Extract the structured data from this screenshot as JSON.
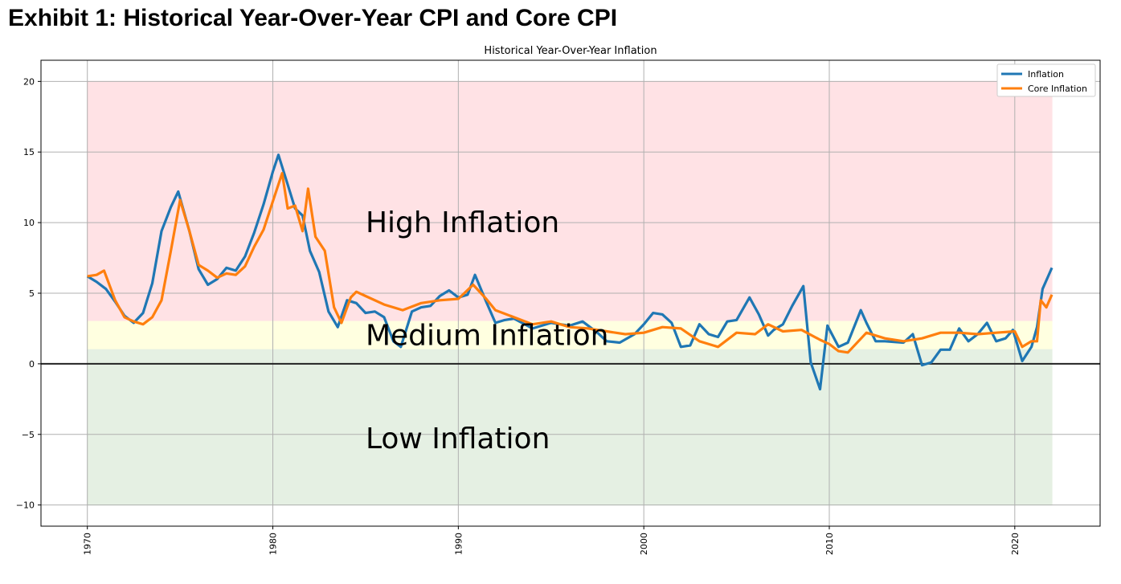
{
  "exhibit_title": "Exhibit 1: Historical Year-Over-Year CPI and Core CPI",
  "chart_data": {
    "type": "line",
    "title": "Historical Year-Over-Year Inflation",
    "xlabel": "",
    "ylabel": "",
    "xlim": [
      1967.5,
      2024.6
    ],
    "ylim": [
      -11.5,
      21.5
    ],
    "x_ticks": [
      1970,
      1980,
      1990,
      2000,
      2010,
      2020
    ],
    "y_ticks": [
      -10,
      -5,
      0,
      5,
      10,
      15,
      20
    ],
    "grid": true,
    "legend_position": "top-right",
    "zones": [
      {
        "label": "High Inflation",
        "from": 3,
        "to": 20,
        "color": "#ffe2e5",
        "label_x": 1985,
        "label_y": 10
      },
      {
        "label": "Medium Inflation",
        "from": 1,
        "to": 3,
        "color": "#ffffe0",
        "label_x": 1985,
        "label_y": 2
      },
      {
        "label": "Low Inflation",
        "from": -10,
        "to": 1,
        "color": "#e5f0e3",
        "label_x": 1985,
        "label_y": -5.3
      }
    ],
    "zone_x_range": [
      1970,
      2022
    ],
    "zero_line": 0,
    "series": [
      {
        "name": "Inflation",
        "color": "#1f77b4",
        "x": [
          1970.0,
          1970.5,
          1971.0,
          1971.5,
          1972.0,
          1972.5,
          1973.0,
          1973.5,
          1974.0,
          1974.5,
          1974.9,
          1975.5,
          1976.0,
          1976.5,
          1977.0,
          1977.5,
          1978.0,
          1978.5,
          1979.0,
          1979.5,
          1980.0,
          1980.3,
          1980.8,
          1981.2,
          1981.6,
          1982.0,
          1982.5,
          1983.0,
          1983.5,
          1984.0,
          1984.5,
          1985.0,
          1985.5,
          1986.0,
          1986.5,
          1986.9,
          1987.5,
          1988.0,
          1988.5,
          1989.0,
          1989.5,
          1990.0,
          1990.5,
          1990.9,
          1991.5,
          1992.0,
          1992.5,
          1993.0,
          1994.0,
          1995.0,
          1996.0,
          1996.7,
          1997.5,
          1998.0,
          1998.7,
          1999.5,
          2000.0,
          2000.5,
          2001.0,
          2001.5,
          2002.0,
          2002.5,
          2003.0,
          2003.5,
          2004.0,
          2004.5,
          2005.0,
          2005.7,
          2006.2,
          2006.7,
          2007.0,
          2007.5,
          2008.0,
          2008.6,
          2009.0,
          2009.5,
          2009.9,
          2010.5,
          2011.0,
          2011.7,
          2012.0,
          2012.5,
          2013.0,
          2014.0,
          2014.5,
          2015.0,
          2015.5,
          2016.0,
          2016.5,
          2017.0,
          2017.5,
          2018.0,
          2018.5,
          2019.0,
          2019.5,
          2019.9,
          2020.4,
          2020.9,
          2021.2,
          2021.5,
          2021.8,
          2022.0
        ],
        "y": [
          6.2,
          5.8,
          5.3,
          4.4,
          3.4,
          2.9,
          3.6,
          5.7,
          9.4,
          11.1,
          12.2,
          9.4,
          6.7,
          5.6,
          6.0,
          6.8,
          6.6,
          7.6,
          9.3,
          11.3,
          13.6,
          14.8,
          12.7,
          11.0,
          10.5,
          8.0,
          6.5,
          3.7,
          2.6,
          4.5,
          4.3,
          3.6,
          3.7,
          3.3,
          1.6,
          1.2,
          3.7,
          4.0,
          4.1,
          4.8,
          5.2,
          4.7,
          4.9,
          6.3,
          4.4,
          2.9,
          3.1,
          3.2,
          2.5,
          2.9,
          2.7,
          3.0,
          2.2,
          1.6,
          1.5,
          2.1,
          2.8,
          3.6,
          3.5,
          2.9,
          1.2,
          1.3,
          2.8,
          2.1,
          1.9,
          3.0,
          3.1,
          4.7,
          3.5,
          2.0,
          2.4,
          2.8,
          4.1,
          5.5,
          0.1,
          -1.8,
          2.7,
          1.2,
          1.5,
          3.8,
          2.9,
          1.6,
          1.6,
          1.5,
          2.1,
          -0.1,
          0.1,
          1.0,
          1.0,
          2.5,
          1.6,
          2.1,
          2.9,
          1.6,
          1.8,
          2.4,
          0.2,
          1.2,
          2.6,
          5.3,
          6.2,
          6.8
        ]
      },
      {
        "name": "Core Inflation",
        "color": "#ff7f0e",
        "x": [
          1970.0,
          1970.5,
          1970.9,
          1971.5,
          1972.0,
          1972.5,
          1973.0,
          1973.5,
          1974.0,
          1974.5,
          1975.0,
          1975.5,
          1976.0,
          1976.5,
          1977.0,
          1977.5,
          1978.0,
          1978.5,
          1979.0,
          1979.5,
          1980.0,
          1980.5,
          1980.8,
          1981.2,
          1981.6,
          1981.9,
          1982.3,
          1982.8,
          1983.3,
          1983.7,
          1984.2,
          1984.5,
          1985.0,
          1986.0,
          1987.0,
          1988.0,
          1989.0,
          1990.0,
          1990.8,
          1991.5,
          1992.0,
          1993.0,
          1994.0,
          1995.0,
          1996.0,
          1997.0,
          1998.0,
          1999.0,
          2000.0,
          2001.0,
          2002.0,
          2003.0,
          2004.0,
          2005.0,
          2006.0,
          2006.7,
          2007.5,
          2008.5,
          2009.5,
          2010.0,
          2010.5,
          2011.0,
          2012.0,
          2013.0,
          2014.0,
          2015.0,
          2016.0,
          2017.0,
          2018.0,
          2019.0,
          2020.0,
          2020.4,
          2020.9,
          2021.2,
          2021.4,
          2021.7,
          2022.0
        ],
        "y": [
          6.2,
          6.3,
          6.6,
          4.5,
          3.3,
          3.0,
          2.8,
          3.3,
          4.5,
          8.0,
          11.6,
          9.4,
          7.0,
          6.6,
          6.1,
          6.4,
          6.3,
          6.9,
          8.3,
          9.5,
          11.5,
          13.5,
          11.0,
          11.2,
          9.4,
          12.4,
          9.0,
          8.0,
          4.0,
          2.9,
          4.7,
          5.1,
          4.8,
          4.2,
          3.8,
          4.3,
          4.5,
          4.6,
          5.6,
          4.6,
          3.8,
          3.3,
          2.8,
          3.0,
          2.6,
          2.5,
          2.3,
          2.1,
          2.2,
          2.6,
          2.5,
          1.6,
          1.2,
          2.2,
          2.1,
          2.8,
          2.3,
          2.4,
          1.7,
          1.4,
          0.9,
          0.8,
          2.2,
          1.8,
          1.6,
          1.8,
          2.2,
          2.2,
          2.1,
          2.2,
          2.3,
          1.2,
          1.6,
          1.6,
          4.5,
          4.0,
          4.9
        ]
      }
    ]
  }
}
